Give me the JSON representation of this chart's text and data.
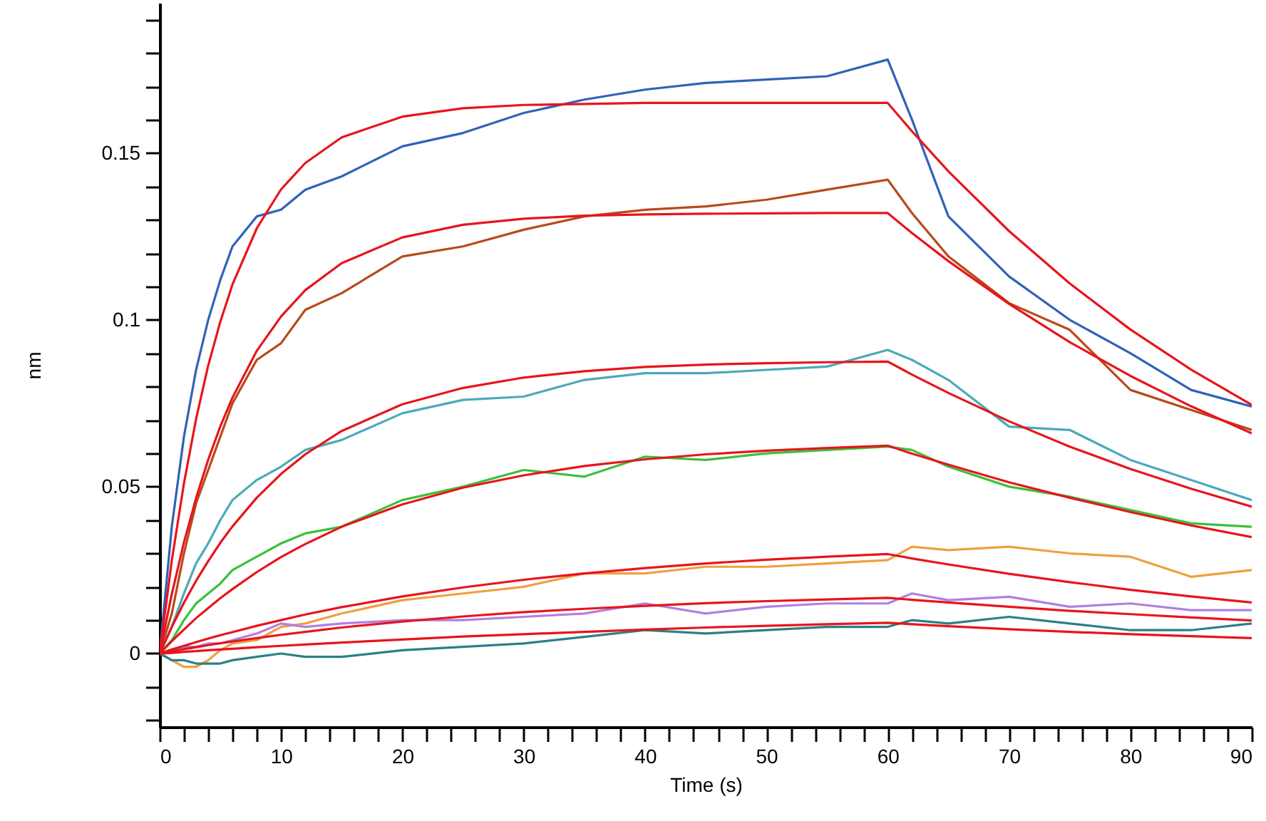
{
  "chart_data": {
    "type": "line",
    "xlabel": "Time (s)",
    "ylabel": "nm",
    "x": [
      0,
      1,
      2,
      3,
      4,
      5,
      6,
      8,
      10,
      12,
      15,
      20,
      25,
      30,
      35,
      40,
      45,
      50,
      55,
      60,
      62,
      65,
      70,
      75,
      80,
      85,
      90
    ],
    "xlim": [
      0,
      90
    ],
    "xticks": [
      0,
      {
        "value": 2,
        "label": null
      },
      {
        "value": 4,
        "label": null
      },
      {
        "value": 6,
        "label": null
      },
      {
        "value": 8,
        "label": null
      },
      10,
      {
        "value": 12,
        "label": null
      },
      {
        "value": 14,
        "label": null
      },
      {
        "value": 16,
        "label": null
      },
      {
        "value": 18,
        "label": null
      },
      20,
      {
        "value": 22,
        "label": null
      },
      {
        "value": 24,
        "label": null
      },
      {
        "value": 26,
        "label": null
      },
      {
        "value": 28,
        "label": null
      },
      30,
      {
        "value": 32,
        "label": null
      },
      {
        "value": 34,
        "label": null
      },
      {
        "value": 36,
        "label": null
      },
      {
        "value": 38,
        "label": null
      },
      40,
      {
        "value": 42,
        "label": null
      },
      {
        "value": 44,
        "label": null
      },
      {
        "value": 46,
        "label": null
      },
      {
        "value": 48,
        "label": null
      },
      50,
      {
        "value": 52,
        "label": null
      },
      {
        "value": 54,
        "label": null
      },
      {
        "value": 56,
        "label": null
      },
      {
        "value": 58,
        "label": null
      },
      60,
      {
        "value": 62,
        "label": null
      },
      {
        "value": 64,
        "label": null
      },
      {
        "value": 66,
        "label": null
      },
      {
        "value": 68,
        "label": null
      },
      70,
      {
        "value": 72,
        "label": null
      },
      {
        "value": 74,
        "label": null
      },
      {
        "value": 76,
        "label": null
      },
      {
        "value": 78,
        "label": null
      },
      80,
      {
        "value": 82,
        "label": null
      },
      {
        "value": 84,
        "label": null
      },
      {
        "value": 86,
        "label": null
      },
      {
        "value": 88,
        "label": null
      },
      90
    ],
    "ylim": [
      -0.022,
      0.195
    ],
    "yticks": [
      {
        "value": -0.02,
        "label": null
      },
      {
        "value": -0.01,
        "label": null
      },
      0,
      {
        "value": 0.01,
        "label": null
      },
      {
        "value": 0.02,
        "label": null
      },
      {
        "value": 0.03,
        "label": null
      },
      {
        "value": 0.04,
        "label": null
      },
      0.05,
      {
        "value": 0.06,
        "label": null
      },
      {
        "value": 0.07,
        "label": null
      },
      {
        "value": 0.08,
        "label": null
      },
      {
        "value": 0.09,
        "label": null
      },
      0.1,
      {
        "value": 0.11,
        "label": null
      },
      {
        "value": 0.12,
        "label": null
      },
      {
        "value": 0.13,
        "label": null
      },
      {
        "value": 0.14,
        "label": null
      },
      0.15,
      {
        "value": 0.16,
        "label": null
      },
      {
        "value": 0.17,
        "label": null
      },
      {
        "value": 0.18,
        "label": null
      },
      {
        "value": 0.19,
        "label": null
      }
    ],
    "grid": false,
    "marker": "none",
    "line_style": "solid",
    "series": [
      {
        "color": "#2e63b8",
        "values": [
          0,
          0.038,
          0.065,
          0.085,
          0.1,
          0.112,
          0.122,
          0.131,
          0.133,
          0.139,
          0.143,
          0.152,
          0.156,
          0.162,
          0.166,
          0.169,
          0.171,
          0.172,
          0.173,
          0.178,
          0.16,
          0.131,
          0.113,
          0.1,
          0.09,
          0.079,
          0.074
        ]
      },
      {
        "color": "#b84a1a",
        "values": [
          0,
          0.012,
          0.03,
          0.045,
          0.055,
          0.065,
          0.075,
          0.088,
          0.093,
          0.103,
          0.108,
          0.119,
          0.122,
          0.127,
          0.131,
          0.133,
          0.134,
          0.136,
          0.139,
          0.142,
          0.132,
          0.119,
          0.105,
          0.097,
          0.079,
          0.073,
          0.067
        ]
      },
      {
        "color": "#4aaab8",
        "values": [
          0,
          0.008,
          0.018,
          0.027,
          0.033,
          0.04,
          0.046,
          0.052,
          0.056,
          0.061,
          0.064,
          0.072,
          0.076,
          0.077,
          0.082,
          0.084,
          0.084,
          0.085,
          0.086,
          0.091,
          0.088,
          0.082,
          0.068,
          0.067,
          0.058,
          0.052,
          0.046
        ]
      },
      {
        "color": "#3cc03c",
        "values": [
          0,
          0.004,
          0.01,
          0.015,
          0.018,
          0.021,
          0.025,
          0.029,
          0.033,
          0.036,
          0.038,
          0.046,
          0.05,
          0.055,
          0.053,
          0.059,
          0.058,
          0.06,
          0.061,
          0.062,
          0.061,
          0.056,
          0.05,
          0.047,
          0.043,
          0.039,
          0.038
        ]
      },
      {
        "color": "#f0a040",
        "values": [
          0,
          -0.002,
          -0.004,
          -0.004,
          -0.002,
          0.001,
          0.003,
          0.004,
          0.008,
          0.009,
          0.012,
          0.016,
          0.018,
          0.02,
          0.024,
          0.024,
          0.026,
          0.026,
          0.027,
          0.028,
          0.032,
          0.031,
          0.032,
          0.03,
          0.029,
          0.023,
          0.025
        ]
      },
      {
        "color": "#b080e0",
        "values": [
          0,
          0.001,
          0.002,
          0.002,
          0.003,
          0.003,
          0.004,
          0.006,
          0.009,
          0.008,
          0.009,
          0.01,
          0.01,
          0.011,
          0.012,
          0.015,
          0.012,
          0.014,
          0.015,
          0.015,
          0.018,
          0.016,
          0.017,
          0.014,
          0.015,
          0.013,
          0.013
        ]
      },
      {
        "color": "#2a8088",
        "values": [
          0,
          -0.002,
          -0.002,
          -0.003,
          -0.003,
          -0.003,
          -0.002,
          -0.001,
          0,
          -0.001,
          -0.001,
          0.001,
          0.002,
          0.003,
          0.005,
          0.007,
          0.006,
          0.007,
          0.008,
          0.008,
          0.01,
          0.009,
          0.011,
          0.009,
          0.007,
          0.007,
          0.009
        ]
      },
      {
        "color": "#e8141c",
        "values": [
          0,
          0.0279,
          0.051,
          0.0703,
          0.0863,
          0.0995,
          0.1106,
          0.1274,
          0.1391,
          0.147,
          0.1547,
          0.1609,
          0.1634,
          0.1644,
          0.1647,
          0.165,
          0.165,
          0.165,
          0.165,
          0.165,
          0.1565,
          0.1445,
          0.1266,
          0.1109,
          0.0971,
          0.0851,
          0.0745
        ]
      },
      {
        "color": "#e8141c",
        "values": [
          0,
          0.0178,
          0.0333,
          0.0466,
          0.0581,
          0.0681,
          0.0767,
          0.0907,
          0.101,
          0.1089,
          0.117,
          0.1247,
          0.1285,
          0.1303,
          0.1312,
          0.1316,
          0.1318,
          0.1319,
          0.132,
          0.132,
          0.126,
          0.1176,
          0.1048,
          0.0933,
          0.0832,
          0.0741,
          0.066
        ]
      },
      {
        "color": "#e8141c",
        "values": [
          0,
          0.008,
          0.0152,
          0.0218,
          0.0277,
          0.0332,
          0.0381,
          0.0467,
          0.0538,
          0.0597,
          0.0667,
          0.0747,
          0.0796,
          0.0827,
          0.0846,
          0.0859,
          0.0866,
          0.087,
          0.0873,
          0.0875,
          0.0836,
          0.0781,
          0.0696,
          0.062,
          0.0553,
          0.0494,
          0.044
        ]
      },
      {
        "color": "#e8141c",
        "values": [
          0,
          0.0037,
          0.0072,
          0.0106,
          0.0136,
          0.0166,
          0.0193,
          0.0244,
          0.0289,
          0.0328,
          0.038,
          0.0447,
          0.0497,
          0.0534,
          0.0562,
          0.0582,
          0.0597,
          0.0608,
          0.0616,
          0.0623,
          0.0599,
          0.0566,
          0.0513,
          0.0467,
          0.0424,
          0.0384,
          0.0349
        ]
      },
      {
        "color": "#e8141c",
        "values": [
          0,
          0.0012,
          0.0023,
          0.0034,
          0.0045,
          0.0055,
          0.0064,
          0.0083,
          0.01,
          0.0117,
          0.0139,
          0.0171,
          0.0198,
          0.0221,
          0.024,
          0.0256,
          0.027,
          0.0281,
          0.029,
          0.0298,
          0.0285,
          0.0267,
          0.0239,
          0.0214,
          0.0191,
          0.0171,
          0.0153
        ]
      },
      {
        "color": "#e8141c",
        "values": [
          0,
          0.0006,
          0.0013,
          0.0019,
          0.0025,
          0.0031,
          0.0036,
          0.0046,
          0.0056,
          0.0065,
          0.0078,
          0.0096,
          0.0111,
          0.0124,
          0.0134,
          0.0143,
          0.0151,
          0.0157,
          0.0162,
          0.0167,
          0.0161,
          0.0153,
          0.014,
          0.0128,
          0.0118,
          0.0108,
          0.0099
        ]
      },
      {
        "color": "#e8141c",
        "values": [
          0,
          0.0002,
          0.0005,
          0.0007,
          0.001,
          0.0012,
          0.0014,
          0.0019,
          0.0023,
          0.0027,
          0.0033,
          0.0042,
          0.0051,
          0.0058,
          0.0065,
          0.0072,
          0.0078,
          0.0083,
          0.0088,
          0.0092,
          0.0088,
          0.0082,
          0.0073,
          0.0065,
          0.0058,
          0.0052,
          0.0046
        ]
      }
    ]
  }
}
